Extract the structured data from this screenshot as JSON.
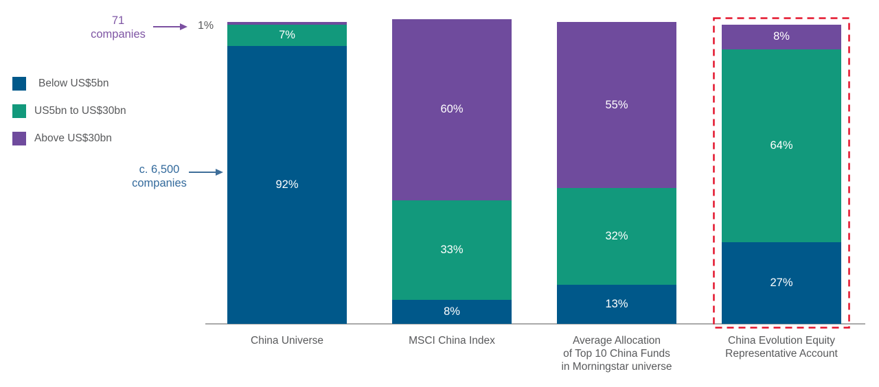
{
  "chart_data": {
    "type": "bar",
    "stacked": true,
    "units": "%",
    "categories": [
      "China Universe",
      "MSCI China Index",
      "Average Allocation\nof Top 10 China Funds\nin Morningstar universe",
      "China Evolution Equity\nRepresentative Account"
    ],
    "series": [
      {
        "name": "Below US$5bn",
        "color": "#00588A",
        "values": [
          92,
          8,
          13,
          27
        ]
      },
      {
        "name": "US5bn to US$30bn",
        "color": "#12997C",
        "values": [
          7,
          33,
          32,
          64
        ]
      },
      {
        "name": "Above US$30bn",
        "color": "#6F4B9D",
        "values": [
          1,
          60,
          55,
          8
        ]
      }
    ],
    "value_labels": [
      [
        "92%",
        "8%",
        "13%",
        "27%"
      ],
      [
        "7%",
        "33%",
        "32%",
        "64%"
      ],
      [
        "",
        "60%",
        "55%",
        "8%"
      ]
    ],
    "outside_label": {
      "text": "1%",
      "category_index": 0,
      "series_name": "Above US$30bn",
      "color": "#58595B"
    },
    "annotations": [
      {
        "text": "71\ncompanies",
        "color": "#7E55A4",
        "arrow_color": "#7B4FA0"
      },
      {
        "text": "c. 6,500\ncompanies",
        "color": "#336A9C",
        "arrow_color": "#3E6E99"
      }
    ],
    "highlight_box": {
      "category_index": 3,
      "color": "#E3142C",
      "style": "dashed"
    },
    "axis": {
      "baseline_color": "#A9A9A9",
      "label_color": "#58595B"
    },
    "legend_position": "left",
    "ylim": [
      0,
      100
    ],
    "grid": false
  }
}
